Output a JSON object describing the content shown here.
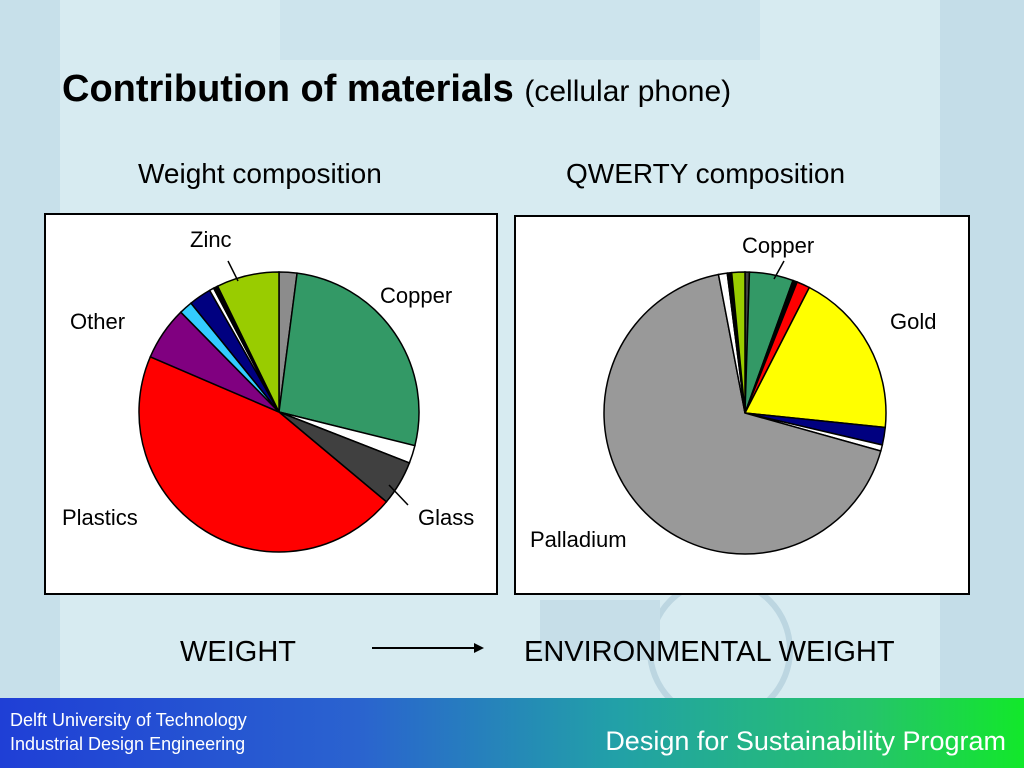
{
  "slide": {
    "title_main": "Contribution of materials",
    "title_sub": "(cellular phone)",
    "bottom_left": "WEIGHT",
    "bottom_right": "ENVIRONMENTAL WEIGHT"
  },
  "footer": {
    "org_line1": "Delft University of Technology",
    "org_line2": "Industrial Design Engineering",
    "program": "Design for Sustainability Program"
  },
  "colors": {
    "footer_left": "#1f3fd6",
    "footer_right": "#12e82a"
  },
  "chart_data": [
    {
      "type": "pie",
      "title": "Weight composition",
      "labels_shown": [
        "Zinc",
        "Copper",
        "Glass",
        "Plastics",
        "Other"
      ],
      "slices": [
        {
          "label": "",
          "value": 2,
          "color": "#8c8c8c"
        },
        {
          "label": "Copper",
          "value": 26,
          "color": "#339966"
        },
        {
          "label": "",
          "value": 2,
          "color": "#ffffff"
        },
        {
          "label": "Glass",
          "value": 5,
          "color": "#404040"
        },
        {
          "label": "Plastics",
          "value": 44,
          "color": "#ff0000"
        },
        {
          "label": "",
          "value": 6,
          "color": "#800080"
        },
        {
          "label": "Other",
          "value": 1.5,
          "color": "#33ccff"
        },
        {
          "label": "",
          "value": 2.5,
          "color": "#000080"
        },
        {
          "label": "",
          "value": 0.5,
          "color": "#ffffff"
        },
        {
          "label": "",
          "value": 0.5,
          "color": "#000000"
        },
        {
          "label": "Zinc",
          "value": 7,
          "color": "#99cc00"
        }
      ]
    },
    {
      "type": "pie",
      "title": "QWERTY composition",
      "labels_shown": [
        "Copper",
        "Gold",
        "Palladium"
      ],
      "slices": [
        {
          "label": "",
          "value": 0.5,
          "color": "#404040"
        },
        {
          "label": "Copper",
          "value": 5,
          "color": "#339966"
        },
        {
          "label": "",
          "value": 0.5,
          "color": "#000000"
        },
        {
          "label": "",
          "value": 1.5,
          "color": "#ff0000"
        },
        {
          "label": "Gold",
          "value": 19,
          "color": "#ffff00"
        },
        {
          "label": "",
          "value": 2,
          "color": "#000080"
        },
        {
          "label": "",
          "value": 0.7,
          "color": "#ffffff"
        },
        {
          "label": "Palladium",
          "value": 67.3,
          "color": "#999999"
        },
        {
          "label": "",
          "value": 1,
          "color": "#ffffff"
        },
        {
          "label": "",
          "value": 0.5,
          "color": "#000000"
        },
        {
          "label": "",
          "value": 1.5,
          "color": "#99cc00"
        }
      ]
    }
  ]
}
